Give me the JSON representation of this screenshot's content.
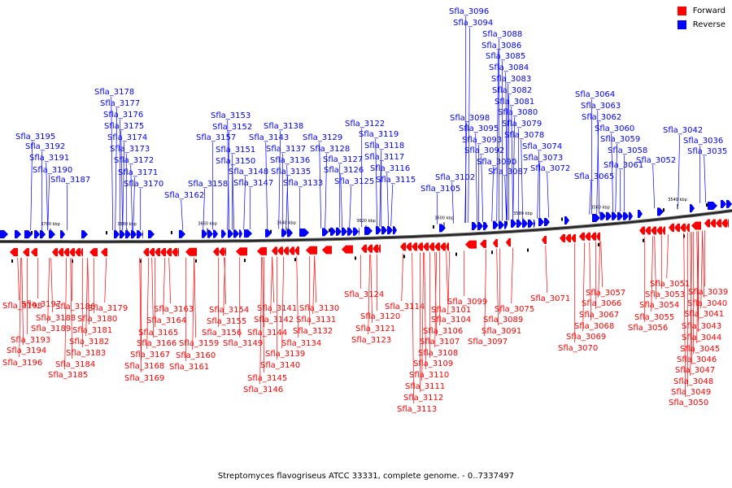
{
  "caption": "Streptomyces flavogriseus ATCC 33331, complete genome. - 0..7337497",
  "colors": {
    "forward": "#ff0000",
    "reverse": "#0000ff",
    "axis": "#000000",
    "tick": "#000000"
  },
  "legend": [
    {
      "label": "Forward",
      "color": "#ff0000"
    },
    {
      "label": "Reverse",
      "color": "#0000ff"
    }
  ],
  "axis_ticks": [
    "3700 kbp",
    "3680 kbp",
    "3660 kbp",
    "3640 kbp",
    "3620 kbp",
    "3600 kbp",
    "3580 kbp",
    "3560 kbp",
    "3540 kbp"
  ],
  "reverse_genes": [
    "Sfla_3195",
    "Sfla_3192",
    "Sfla_3191",
    "Sfla_3190",
    "Sfla_3187",
    "Sfla_3178",
    "Sfla_3177",
    "Sfla_3176",
    "Sfla_3175",
    "Sfla_3174",
    "Sfla_3173",
    "Sfla_3172",
    "Sfla_3171",
    "Sfla_3170",
    "Sfla_3162",
    "Sfla_3158",
    "Sfla_3157",
    "Sfla_3153",
    "Sfla_3152",
    "Sfla_3151",
    "Sfla_3150",
    "Sfla_3148",
    "Sfla_3147",
    "Sfla_3143",
    "Sfla_3138",
    "Sfla_3137",
    "Sfla_3136",
    "Sfla_3135",
    "Sfla_3133",
    "Sfla_3129",
    "Sfla_3128",
    "Sfla_3127",
    "Sfla_3126",
    "Sfla_3125",
    "Sfla_3122",
    "Sfla_3119",
    "Sfla_3118",
    "Sfla_3117",
    "Sfla_3116",
    "Sfla_3115",
    "Sfla_3105",
    "Sfla_3102",
    "Sfla_3098",
    "Sfla_3096",
    "Sfla_3095",
    "Sfla_3094",
    "Sfla_3093",
    "Sfla_3092",
    "Sfla_3090",
    "Sfla_3088",
    "Sfla_3087",
    "Sfla_3086",
    "Sfla_3085",
    "Sfla_3084",
    "Sfla_3083",
    "Sfla_3082",
    "Sfla_3081",
    "Sfla_3080",
    "Sfla_3079",
    "Sfla_3078",
    "Sfla_3074",
    "Sfla_3073",
    "Sfla_3072",
    "Sfla_3065",
    "Sfla_3064",
    "Sfla_3063",
    "Sfla_3062",
    "Sfla_3061",
    "Sfla_3060",
    "Sfla_3059",
    "Sfla_3058",
    "Sfla_3052",
    "Sfla_3042",
    "Sfla_3036",
    "Sfla_3035"
  ],
  "forward_genes": [
    "Sfla_3198",
    "Sfla_3197",
    "Sfla_3196",
    "Sfla_3194",
    "Sfla_3193",
    "Sfla_3189",
    "Sfla_3188",
    "Sfla_3186",
    "Sfla_3185",
    "Sfla_3184",
    "Sfla_3183",
    "Sfla_3182",
    "Sfla_3181",
    "Sfla_3180",
    "Sfla_3179",
    "Sfla_3169",
    "Sfla_3168",
    "Sfla_3167",
    "Sfla_3166",
    "Sfla_3165",
    "Sfla_3164",
    "Sfla_3163",
    "Sfla_3161",
    "Sfla_3160",
    "Sfla_3159",
    "Sfla_3156",
    "Sfla_3155",
    "Sfla_3154",
    "Sfla_3149",
    "Sfla_3146",
    "Sfla_3145",
    "Sfla_3144",
    "Sfla_3142",
    "Sfla_3141",
    "Sfla_3140",
    "Sfla_3139",
    "Sfla_3134",
    "Sfla_3132",
    "Sfla_3131",
    "Sfla_3130",
    "Sfla_3124",
    "Sfla_3123",
    "Sfla_3121",
    "Sfla_3120",
    "Sfla_3114",
    "Sfla_3113",
    "Sfla_3112",
    "Sfla_3111",
    "Sfla_3110",
    "Sfla_3109",
    "Sfla_3108",
    "Sfla_3107",
    "Sfla_3106",
    "Sfla_3104",
    "Sfla_3101",
    "Sfla_3099",
    "Sfla_3097",
    "Sfla_3091",
    "Sfla_3089",
    "Sfla_3075",
    "Sfla_3071",
    "Sfla_3070",
    "Sfla_3069",
    "Sfla_3068",
    "Sfla_3067",
    "Sfla_3066",
    "Sfla_3057",
    "Sfla_3056",
    "Sfla_3055",
    "Sfla_3054",
    "Sfla_3053",
    "Sfla_3051",
    "Sfla_3050",
    "Sfla_3049",
    "Sfla_3048",
    "Sfla_3047",
    "Sfla_3046",
    "Sfla_3045",
    "Sfla_3044",
    "Sfla_3043",
    "Sfla_3041",
    "Sfla_3040",
    "Sfla_3039"
  ]
}
